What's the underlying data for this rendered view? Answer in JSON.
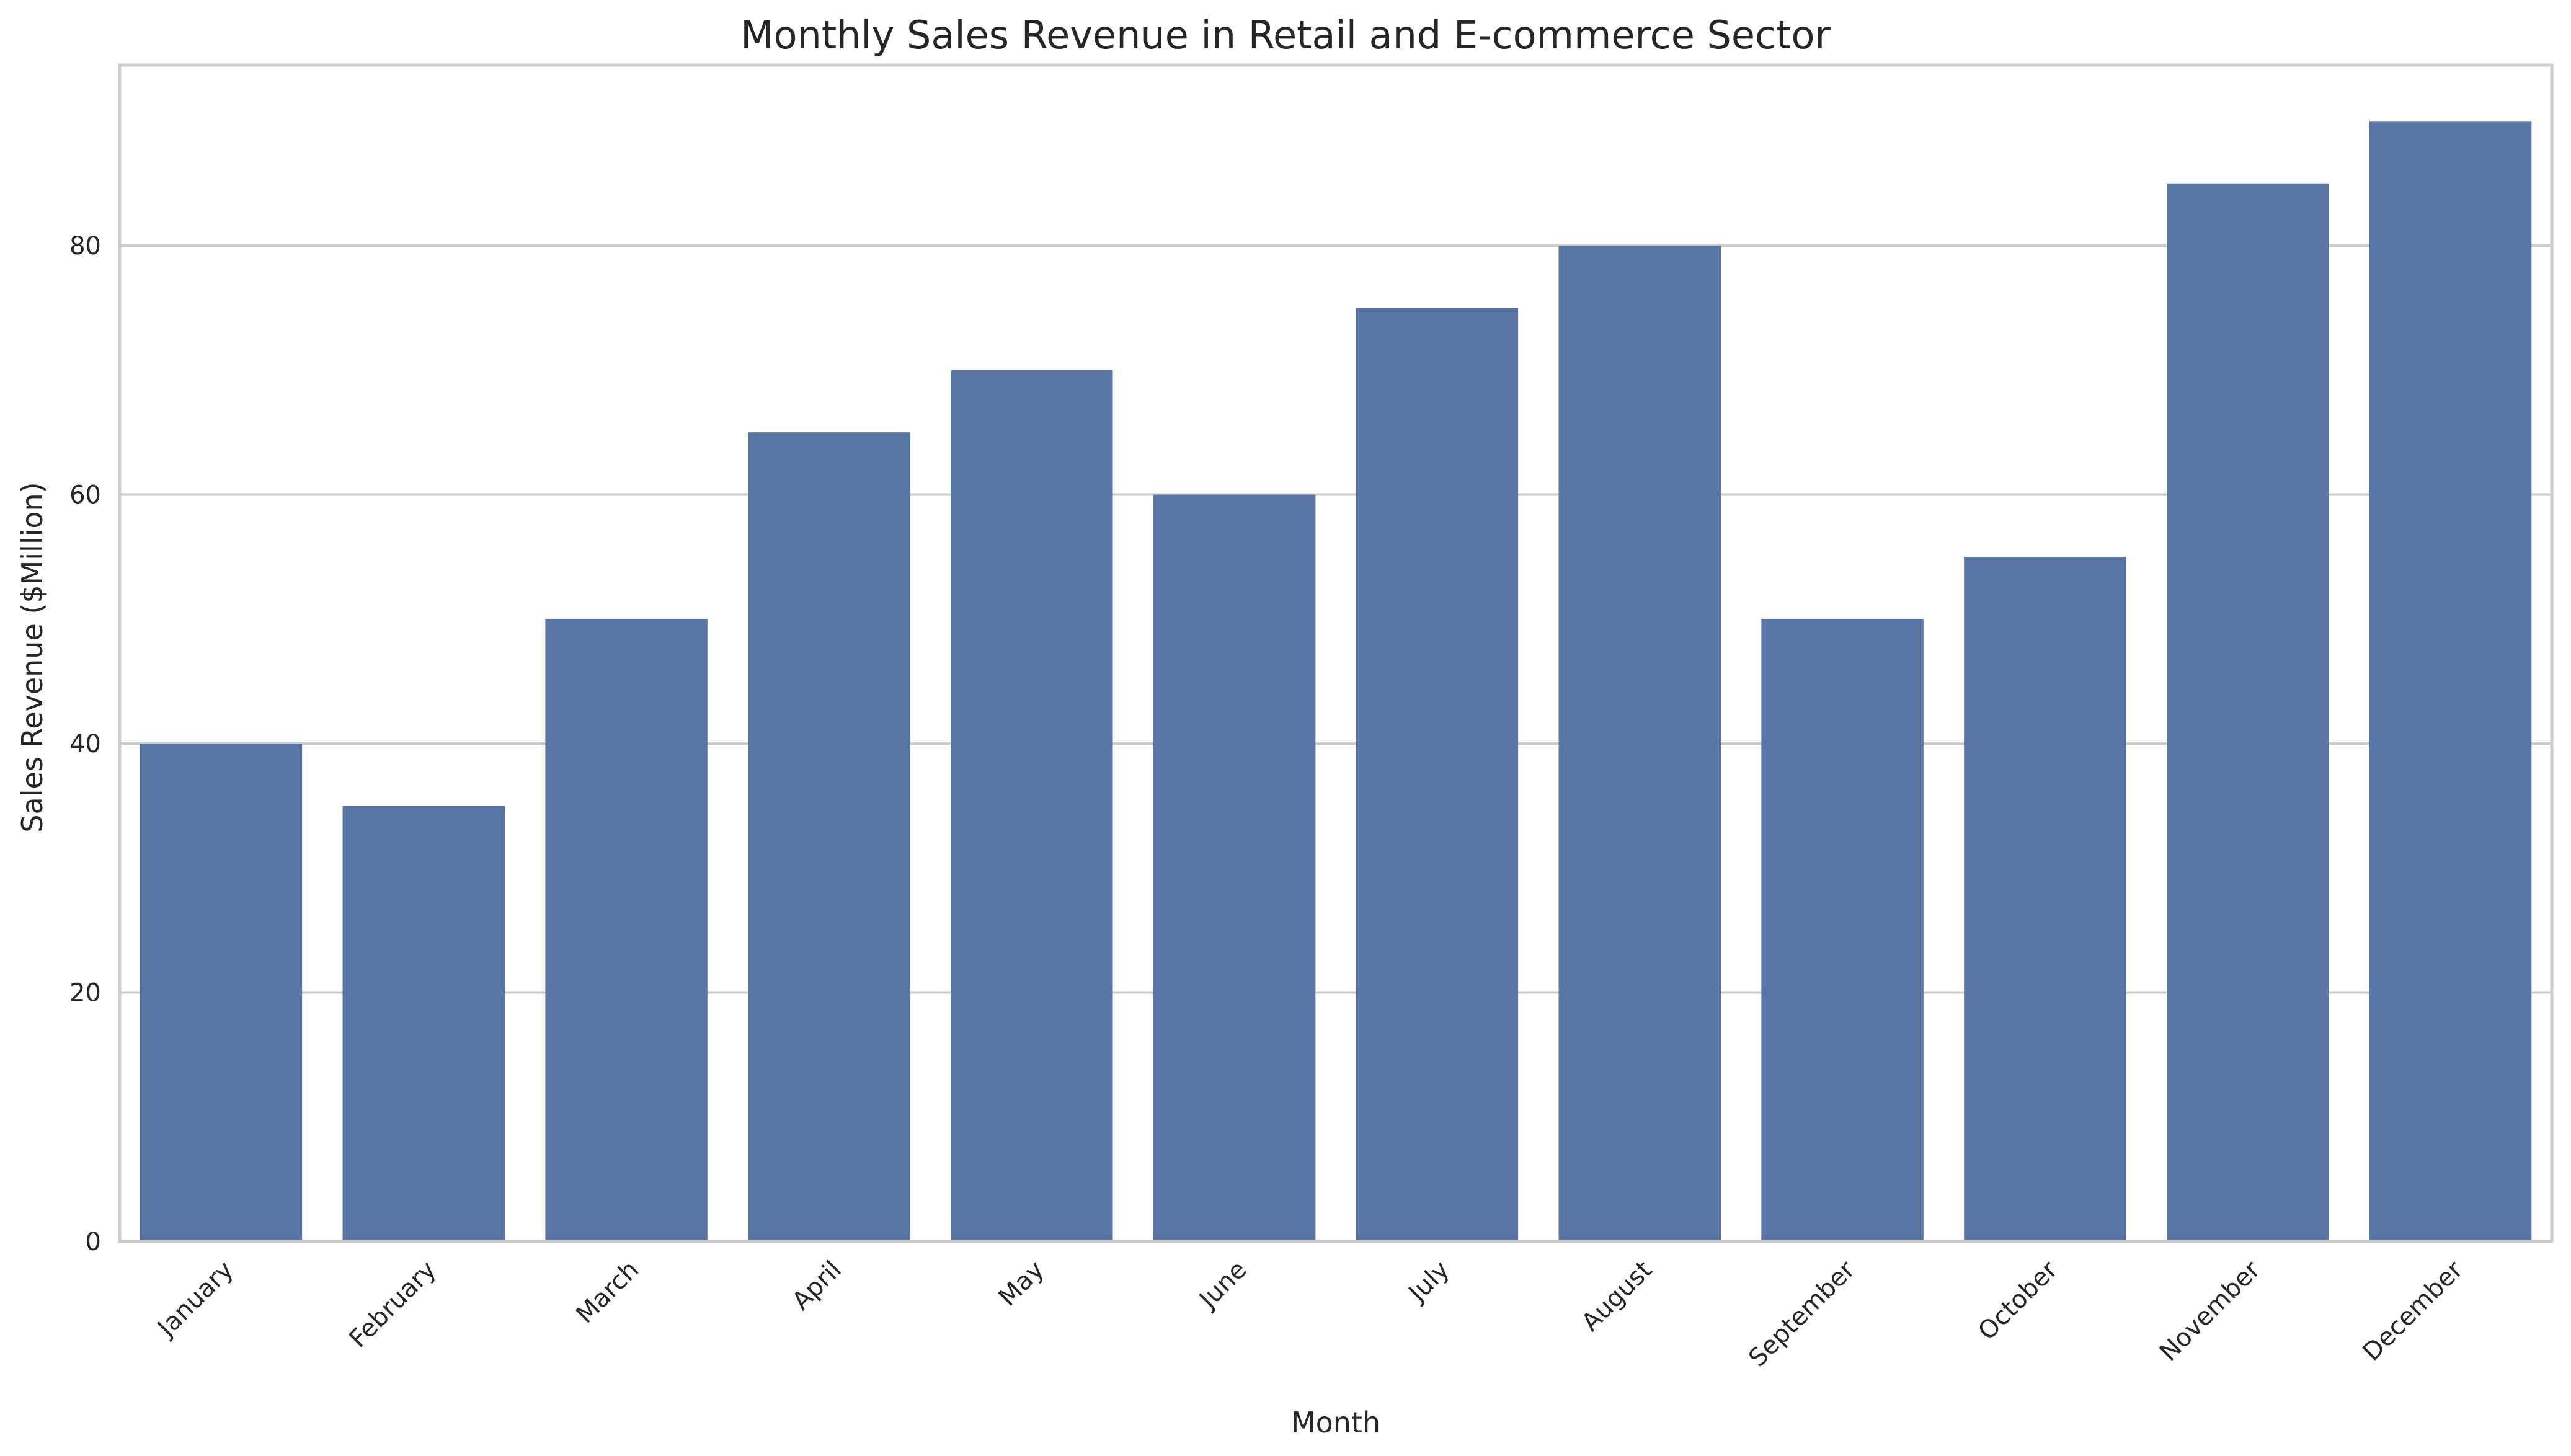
{
  "chart_data": {
    "type": "bar",
    "title": "Monthly Sales Revenue in Retail and E-commerce Sector",
    "xlabel": "Month",
    "ylabel": "Sales Revenue ($Million)",
    "categories": [
      "January",
      "February",
      "March",
      "April",
      "May",
      "June",
      "July",
      "August",
      "September",
      "October",
      "November",
      "December"
    ],
    "values": [
      40,
      35,
      50,
      65,
      70,
      60,
      75,
      80,
      50,
      55,
      85,
      90
    ],
    "ylim": [
      0,
      94.5
    ],
    "yticks": [
      0,
      20,
      40,
      60,
      80
    ],
    "grid": "horizontal",
    "bar_color": "#5975a4",
    "legend": "none"
  }
}
